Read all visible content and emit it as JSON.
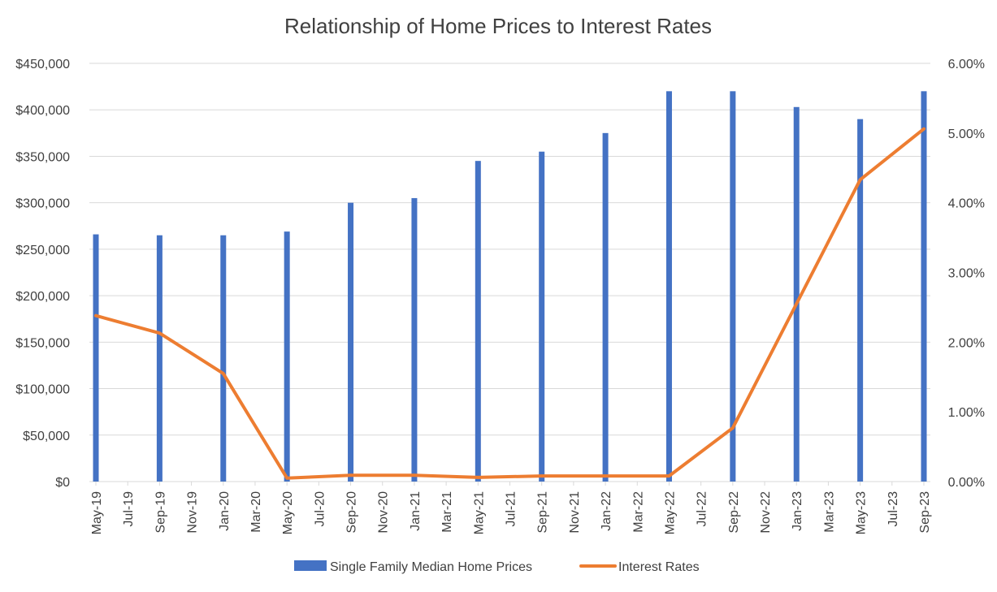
{
  "chart_data": {
    "type": "bar",
    "title": "Relationship of Home Prices to Interest Rates",
    "x_labels": [
      "May-19",
      "Jul-19",
      "Sep-19",
      "Nov-19",
      "Jan-20",
      "Mar-20",
      "May-20",
      "Jul-20",
      "Sep-20",
      "Nov-20",
      "Jan-21",
      "Mar-21",
      "May-21",
      "Jul-21",
      "Sep-21",
      "Nov-21",
      "Jan-22",
      "Mar-22",
      "May-22",
      "Jul-22",
      "Sep-22",
      "Nov-22",
      "Jan-23",
      "Mar-23",
      "May-23",
      "Jul-23",
      "Sep-23"
    ],
    "y_left": {
      "min": 0,
      "max": 450000,
      "step": 50000,
      "tick_labels": [
        "$0",
        "$50,000",
        "$100,000",
        "$150,000",
        "$200,000",
        "$250,000",
        "$300,000",
        "$350,000",
        "$400,000",
        "$450,000"
      ]
    },
    "y_right": {
      "min": 0,
      "max": 6,
      "step": 1,
      "tick_labels": [
        "0.00%",
        "1.00%",
        "2.00%",
        "3.00%",
        "4.00%",
        "5.00%",
        "6.00%"
      ]
    },
    "grid": true,
    "legend_position": "bottom",
    "series": [
      {
        "name": "Single Family Median Home Prices",
        "type": "bar",
        "axis": "left",
        "color": "#4472c4",
        "points": [
          {
            "x": "May-19",
            "y": 266000
          },
          {
            "x": "Sep-19",
            "y": 265000
          },
          {
            "x": "Jan-20",
            "y": 265000
          },
          {
            "x": "May-20",
            "y": 269000
          },
          {
            "x": "Sep-20",
            "y": 300000
          },
          {
            "x": "Jan-21",
            "y": 305000
          },
          {
            "x": "May-21",
            "y": 345000
          },
          {
            "x": "Sep-21",
            "y": 355000
          },
          {
            "x": "Jan-22",
            "y": 375000
          },
          {
            "x": "May-22",
            "y": 420000
          },
          {
            "x": "Sep-22",
            "y": 420000
          },
          {
            "x": "Jan-23",
            "y": 403000
          },
          {
            "x": "May-23",
            "y": 390000
          },
          {
            "x": "Sep-23",
            "y": 420000
          }
        ]
      },
      {
        "name": "Interest Rates",
        "type": "line",
        "axis": "right",
        "color": "#ed7d31",
        "points": [
          {
            "x": "May-19",
            "y": 2.38
          },
          {
            "x": "Sep-19",
            "y": 2.13
          },
          {
            "x": "Jan-20",
            "y": 1.55
          },
          {
            "x": "May-20",
            "y": 0.05
          },
          {
            "x": "Sep-20",
            "y": 0.09
          },
          {
            "x": "Jan-21",
            "y": 0.09
          },
          {
            "x": "May-21",
            "y": 0.06
          },
          {
            "x": "Sep-21",
            "y": 0.08
          },
          {
            "x": "Jan-22",
            "y": 0.08
          },
          {
            "x": "May-22",
            "y": 0.08
          },
          {
            "x": "Sep-22",
            "y": 0.77
          },
          {
            "x": "Jan-23",
            "y": 2.55
          },
          {
            "x": "May-23",
            "y": 4.33
          },
          {
            "x": "Sep-23",
            "y": 5.06
          }
        ]
      }
    ]
  }
}
